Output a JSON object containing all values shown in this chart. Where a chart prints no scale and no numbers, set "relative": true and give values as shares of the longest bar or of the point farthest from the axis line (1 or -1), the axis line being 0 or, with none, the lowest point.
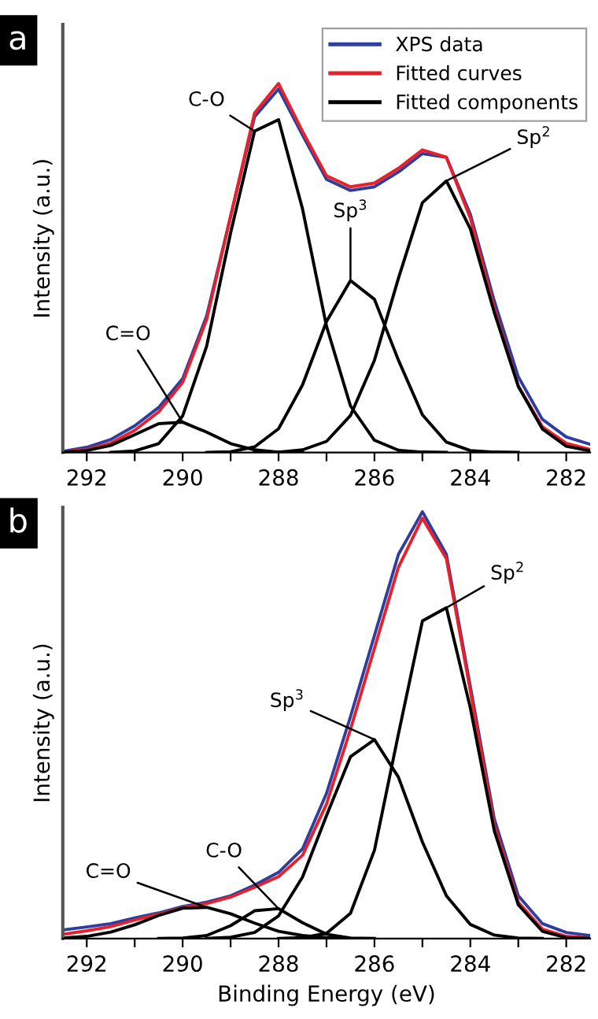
{
  "chart_data": [
    {
      "type": "line",
      "title": "a",
      "ylabel": "Intensity (a.u.)",
      "relative": true,
      "tick_labels": "x",
      "legend": "top right",
      "grid": false,
      "marker": "none",
      "line_style": "solid",
      "x": [
        292.5,
        292,
        291.5,
        291,
        290.5,
        290,
        289.5,
        289,
        288.5,
        288,
        287.5,
        287,
        286.5,
        286,
        285.5,
        285,
        284.5,
        284,
        283.5,
        283,
        282.5,
        282,
        281.5
      ],
      "xlim": [
        292.5,
        281.5
      ],
      "xticks": [
        292,
        {
          "value": 291,
          "label": null
        },
        290,
        {
          "value": 289,
          "label": null
        },
        288,
        {
          "value": 287,
          "label": null
        },
        286,
        {
          "value": 285,
          "label": null
        },
        284,
        {
          "value": 283,
          "label": null
        },
        282
      ],
      "series": [
        {
          "name": "XPS data",
          "color": "#2e3d9e",
          "values": [
            0.003,
            0.014,
            0.035,
            0.072,
            0.122,
            0.2,
            0.37,
            0.64,
            0.91,
            0.985,
            0.86,
            0.74,
            0.71,
            0.72,
            0.76,
            0.81,
            0.8,
            0.645,
            0.41,
            0.205,
            0.09,
            0.042,
            0.022
          ]
        },
        {
          "name": "Fitted curves",
          "color": "#e8202a",
          "values": [
            0.002,
            0.008,
            0.025,
            0.06,
            0.11,
            0.19,
            0.36,
            0.64,
            0.92,
            1.0,
            0.87,
            0.75,
            0.72,
            0.73,
            0.77,
            0.82,
            0.8,
            0.635,
            0.39,
            0.18,
            0.07,
            0.025,
            0.008
          ]
        },
        {
          "name": "Fitted components",
          "color": "#000000",
          "values": [
            0.001,
            0.005,
            0.019,
            0.048,
            0.078,
            0.082,
            0.055,
            0.024,
            0.007,
            0.001,
            0,
            null,
            null,
            null,
            null,
            null,
            null,
            null,
            null,
            null,
            null,
            null,
            null
          ]
        },
        {
          "color": "#000000",
          "values": [
            null,
            null,
            0,
            0.004,
            0.024,
            0.099,
            0.288,
            0.595,
            0.871,
            0.902,
            0.66,
            0.342,
            0.126,
            0.033,
            0.006,
            0.001,
            0,
            null,
            null,
            null,
            null,
            null,
            null
          ]
        },
        {
          "color": "#000000",
          "values": [
            null,
            null,
            null,
            null,
            null,
            null,
            0,
            0.002,
            0.015,
            0.064,
            0.183,
            0.355,
            0.466,
            0.415,
            0.25,
            0.102,
            0.028,
            0.005,
            0.001,
            0,
            null,
            null,
            null
          ]
        },
        {
          "color": "#000000",
          "values": [
            null,
            null,
            null,
            null,
            null,
            null,
            null,
            null,
            0,
            0.001,
            0.007,
            0.03,
            0.1,
            0.25,
            0.472,
            0.677,
            0.736,
            0.606,
            0.379,
            0.179,
            0.064,
            0.017,
            0.004
          ]
        }
      ],
      "annotations": [
        {
          "text": "C=O",
          "x": 290.0,
          "y": 0.082
        },
        {
          "text": "C-O",
          "x": 288.5,
          "y": 0.871
        },
        {
          "text": "Sp$^{3}$",
          "x": 286.5,
          "y": 0.466
        },
        {
          "text": "Sp$^{2}$",
          "x": 284.5,
          "y": 0.736
        }
      ]
    },
    {
      "type": "line",
      "title": "b",
      "xlabel": "Binding Energy (eV)",
      "ylabel": "Intensity (a.u.)",
      "relative": true,
      "tick_labels": "x",
      "grid": false,
      "marker": "none",
      "line_style": "solid",
      "x": [
        292.5,
        292,
        291.5,
        291,
        290.5,
        290,
        289.5,
        289,
        288.5,
        288,
        287.5,
        287,
        286.5,
        286,
        285.5,
        285,
        284.5,
        284,
        283.5,
        283,
        282.5,
        282,
        281.5
      ],
      "xlim": [
        292.5,
        281.5
      ],
      "xticks": [
        292,
        {
          "value": 291,
          "label": null
        },
        290,
        {
          "value": 289,
          "label": null
        },
        288,
        {
          "value": 287,
          "label": null
        },
        286,
        {
          "value": 285,
          "label": null
        },
        284,
        {
          "value": 283,
          "label": null
        },
        282
      ],
      "series": [
        {
          "color": "#2e3d9e",
          "values": [
            0.02,
            0.027,
            0.035,
            0.048,
            0.06,
            0.075,
            0.085,
            0.1,
            0.125,
            0.155,
            0.21,
            0.34,
            0.52,
            0.71,
            0.9,
            1.0,
            0.9,
            0.59,
            0.28,
            0.1,
            0.035,
            0.014,
            0.007
          ]
        },
        {
          "color": "#e8202a",
          "values": [
            0.01,
            0.018,
            0.028,
            0.043,
            0.057,
            0.072,
            0.082,
            0.097,
            0.12,
            0.145,
            0.195,
            0.315,
            0.49,
            0.68,
            0.87,
            0.985,
            0.89,
            0.58,
            0.265,
            0.085,
            0.022,
            0.005,
            0.001
          ]
        },
        {
          "color": "#000000",
          "values": [
            0.001,
            0.005,
            0.015,
            0.032,
            0.054,
            0.071,
            0.073,
            0.058,
            0.036,
            0.017,
            0.007,
            0.002,
            0,
            null,
            null,
            null,
            null,
            null,
            null,
            null,
            null,
            null,
            null
          ]
        },
        {
          "color": "#000000",
          "values": [
            null,
            null,
            null,
            null,
            0,
            0.001,
            0.007,
            0.03,
            0.065,
            0.07,
            0.037,
            0.01,
            0.001,
            0,
            null,
            null,
            null,
            null,
            null,
            null,
            null,
            null,
            null
          ]
        },
        {
          "color": "#000000",
          "values": [
            null,
            null,
            null,
            null,
            null,
            null,
            0,
            0.003,
            0.014,
            0.053,
            0.144,
            0.288,
            0.426,
            0.466,
            0.378,
            0.226,
            0.1,
            0.033,
            0.008,
            0.001,
            0,
            null,
            null
          ]
        },
        {
          "color": "#000000",
          "values": [
            null,
            null,
            null,
            null,
            null,
            null,
            null,
            null,
            null,
            0,
            0.002,
            0.012,
            0.059,
            0.207,
            0.479,
            0.744,
            0.775,
            0.54,
            0.252,
            0.079,
            0.017,
            0.002,
            0
          ]
        }
      ],
      "annotations": [
        {
          "text": "C=O",
          "x": 289.5,
          "y": 0.073
        },
        {
          "text": "C-O",
          "x": 288.0,
          "y": 0.07
        },
        {
          "text": "Sp$^{3}$",
          "x": 286.0,
          "y": 0.466
        },
        {
          "text": "Sp$^{2}$",
          "x": 284.5,
          "y": 0.775
        }
      ]
    }
  ]
}
